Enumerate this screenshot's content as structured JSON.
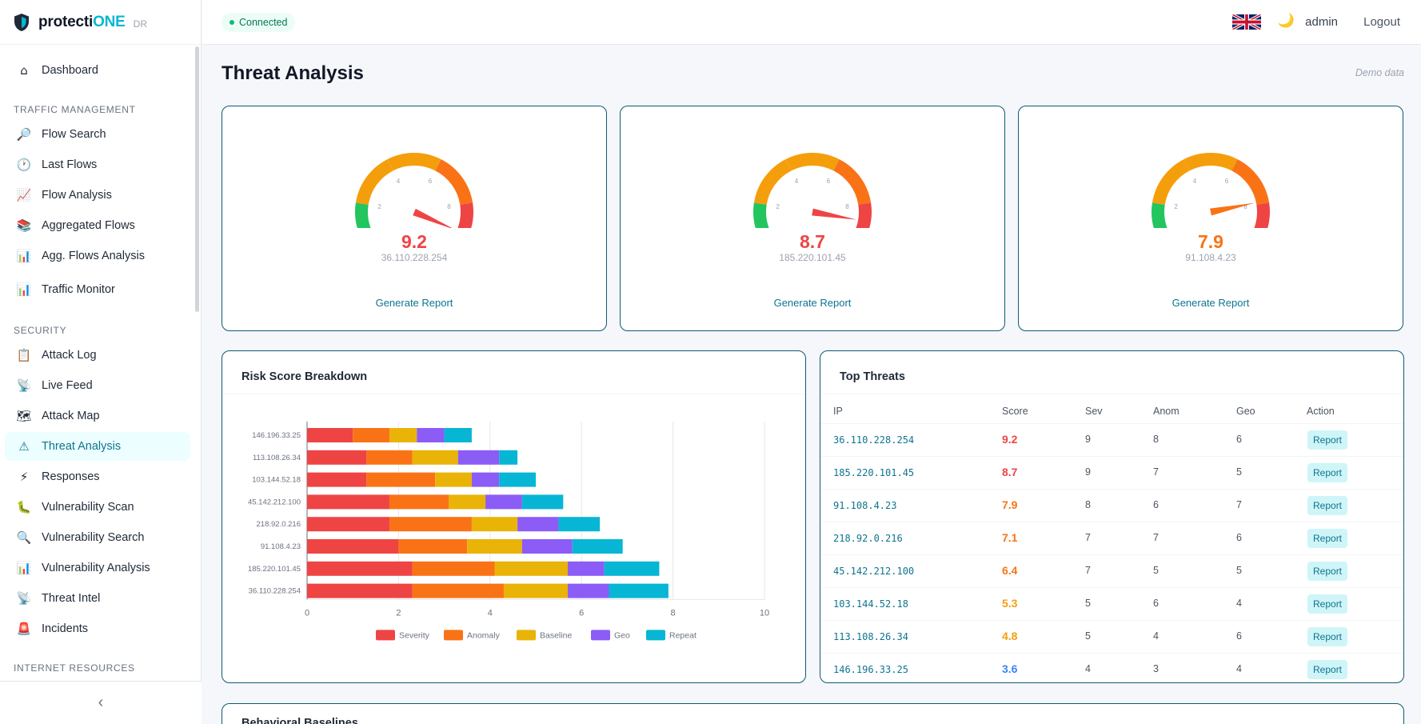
{
  "brand": {
    "name_prefix": "protecti",
    "name_accent": "ONE",
    "sub": "DR"
  },
  "sidebar": {
    "items": [
      {
        "label": "Dashboard",
        "icon": "home-icon",
        "glyph": "⌂"
      },
      {
        "label": "Flow Search",
        "icon": "magnifier-icon",
        "glyph": "🔎"
      },
      {
        "label": "Last Flows",
        "icon": "clock-icon",
        "glyph": "🕐"
      },
      {
        "label": "Flow Analysis",
        "icon": "chart-line-icon",
        "glyph": "📈"
      },
      {
        "label": "Aggregated Flows",
        "icon": "books-icon",
        "glyph": "📚"
      },
      {
        "label": "Agg. Flows Analysis",
        "icon": "bar-chart-icon",
        "glyph": "📊"
      },
      {
        "label": "Traffic Monitor",
        "icon": "bar-chart-icon",
        "glyph": "📊"
      },
      {
        "label": "Attack Log",
        "icon": "clipboard-icon",
        "glyph": "📋"
      },
      {
        "label": "Live Feed",
        "icon": "satellite-icon",
        "glyph": "📡"
      },
      {
        "label": "Attack Map",
        "icon": "map-icon",
        "glyph": "🗺"
      },
      {
        "label": "Threat Analysis",
        "icon": "warning-icon",
        "glyph": "⚠"
      },
      {
        "label": "Responses",
        "icon": "lightning-icon",
        "glyph": "⚡"
      },
      {
        "label": "Vulnerability Scan",
        "icon": "bug-icon",
        "glyph": "🐛"
      },
      {
        "label": "Vulnerability Search",
        "icon": "search-icon",
        "glyph": "🔍"
      },
      {
        "label": "Vulnerability Analysis",
        "icon": "bar-chart-icon",
        "glyph": "📊"
      },
      {
        "label": "Threat Intel",
        "icon": "satellite-icon",
        "glyph": "📡"
      },
      {
        "label": "Incidents",
        "icon": "siren-icon",
        "glyph": "🚨"
      }
    ],
    "sections": [
      "TRAFFIC MANAGEMENT",
      "SECURITY",
      "INTERNET RESOURCES"
    ],
    "collapse_glyph": "‹"
  },
  "topbar": {
    "status": "Connected",
    "user": "admin",
    "logout": "Logout",
    "moon": "🌙"
  },
  "page": {
    "title": "Threat Analysis",
    "note": "Demo data"
  },
  "gauges": [
    {
      "value": "9.2",
      "score": 9.2,
      "ip": "36.110.228.254",
      "link": "Generate Report",
      "color": "#ef4444"
    },
    {
      "value": "8.7",
      "score": 8.7,
      "ip": "185.220.101.45",
      "link": "Generate Report",
      "color": "#ef4444"
    },
    {
      "value": "7.9",
      "score": 7.9,
      "ip": "91.108.4.23",
      "link": "Generate Report",
      "color": "#f97316"
    }
  ],
  "gauge_ticks": [
    "0",
    "2",
    "4",
    "6",
    "8",
    "10"
  ],
  "risk": {
    "title": "Risk Score Breakdown"
  },
  "chart_data": {
    "type": "bar",
    "orientation": "horizontal",
    "stacked": true,
    "categories": [
      "146.196.33.25",
      "113.108.26.34",
      "103.144.52.18",
      "45.142.212.100",
      "218.92.0.216",
      "91.108.4.23",
      "185.220.101.45",
      "36.110.228.254"
    ],
    "series": [
      {
        "name": "Severity",
        "color": "#ef4444",
        "values": [
          1.0,
          1.3,
          1.3,
          1.8,
          1.8,
          2.0,
          2.3,
          2.3
        ]
      },
      {
        "name": "Anomaly",
        "color": "#f97316",
        "values": [
          0.8,
          1.0,
          1.5,
          1.3,
          1.8,
          1.5,
          1.8,
          2.0
        ]
      },
      {
        "name": "Baseline",
        "color": "#eab308",
        "values": [
          0.6,
          1.0,
          0.8,
          0.8,
          1.0,
          1.2,
          1.6,
          1.4
        ]
      },
      {
        "name": "Geo",
        "color": "#8b5cf6",
        "values": [
          0.6,
          0.9,
          0.6,
          0.8,
          0.9,
          1.1,
          0.8,
          0.9
        ]
      },
      {
        "name": "Repeat",
        "color": "#06b6d4",
        "values": [
          0.6,
          0.4,
          0.8,
          0.9,
          0.9,
          1.1,
          1.2,
          1.3
        ]
      }
    ],
    "xlim": [
      0,
      10
    ],
    "xticks": [
      "0",
      "2",
      "4",
      "6",
      "8",
      "10"
    ],
    "grid": true,
    "legend": "bottom"
  },
  "top_threats": {
    "title": "Top Threats",
    "columns": [
      "IP",
      "Score",
      "Sev",
      "Anom",
      "Geo",
      "Action"
    ],
    "rows": [
      {
        "ip": "36.110.228.254",
        "score": "9.2",
        "sev": "9",
        "anom": "8",
        "geo": "6",
        "action": "Report",
        "color": "#ef4444"
      },
      {
        "ip": "185.220.101.45",
        "score": "8.7",
        "sev": "9",
        "anom": "7",
        "geo": "5",
        "action": "Report",
        "color": "#ef4444"
      },
      {
        "ip": "91.108.4.23",
        "score": "7.9",
        "sev": "8",
        "anom": "6",
        "geo": "7",
        "action": "Report",
        "color": "#f97316"
      },
      {
        "ip": "218.92.0.216",
        "score": "7.1",
        "sev": "7",
        "anom": "7",
        "geo": "6",
        "action": "Report",
        "color": "#f97316"
      },
      {
        "ip": "45.142.212.100",
        "score": "6.4",
        "sev": "7",
        "anom": "5",
        "geo": "5",
        "action": "Report",
        "color": "#f97316"
      },
      {
        "ip": "103.144.52.18",
        "score": "5.3",
        "sev": "5",
        "anom": "6",
        "geo": "4",
        "action": "Report",
        "color": "#f59e0b"
      },
      {
        "ip": "113.108.26.34",
        "score": "4.8",
        "sev": "5",
        "anom": "4",
        "geo": "6",
        "action": "Report",
        "color": "#f59e0b"
      },
      {
        "ip": "146.196.33.25",
        "score": "3.6",
        "sev": "4",
        "anom": "3",
        "geo": "4",
        "action": "Report",
        "color": "#3b82f6"
      }
    ]
  },
  "baselines": {
    "title": "Behavioral Baselines"
  }
}
